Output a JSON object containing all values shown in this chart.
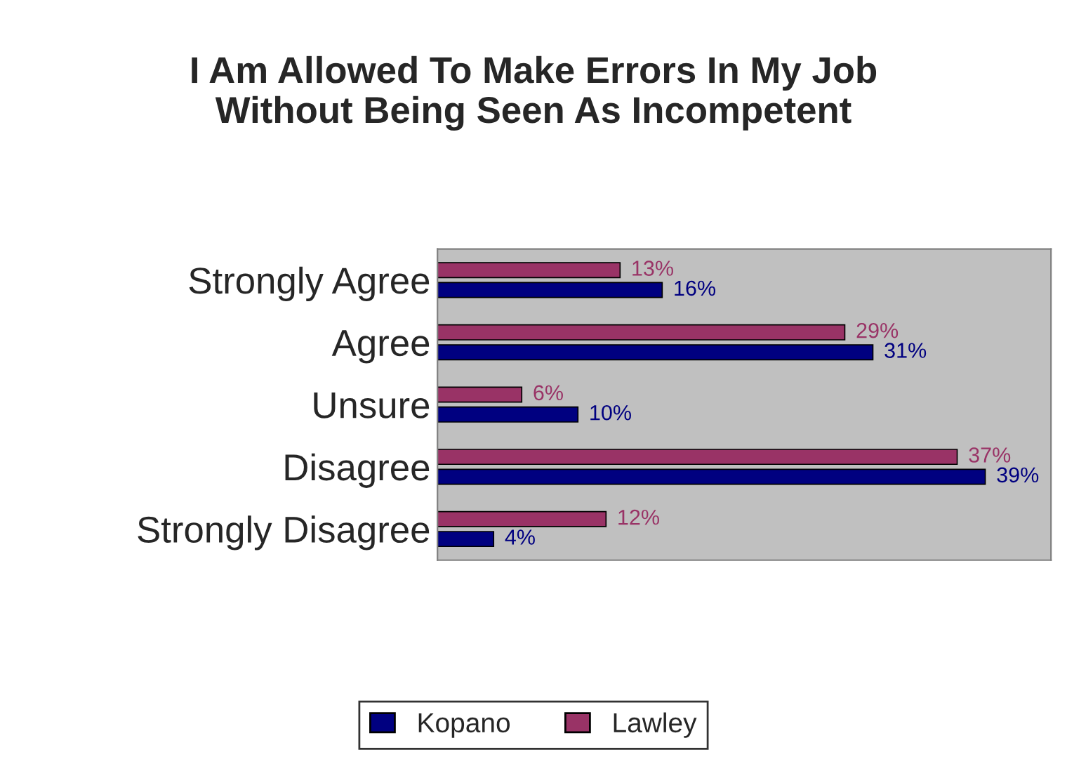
{
  "chart_data": {
    "type": "bar",
    "orientation": "horizontal",
    "title": "I Am Allowed To Make Errors In My Job\nWithout Being Seen As Incompetent",
    "categories": [
      "Strongly Agree",
      "Agree",
      "Unsure",
      "Disagree",
      "Strongly Disagree"
    ],
    "series": [
      {
        "name": "Kopano",
        "color": "#000080",
        "values": [
          16,
          31,
          10,
          39,
          4
        ],
        "value_labels": [
          "16%",
          "31%",
          "10%",
          "39%",
          "4%"
        ]
      },
      {
        "name": "Lawley",
        "color": "#993366",
        "values": [
          13,
          29,
          6,
          37,
          12
        ],
        "value_labels": [
          "13%",
          "29%",
          "6%",
          "37%",
          "12%"
        ]
      }
    ],
    "legend": "bottom",
    "grid": false
  }
}
